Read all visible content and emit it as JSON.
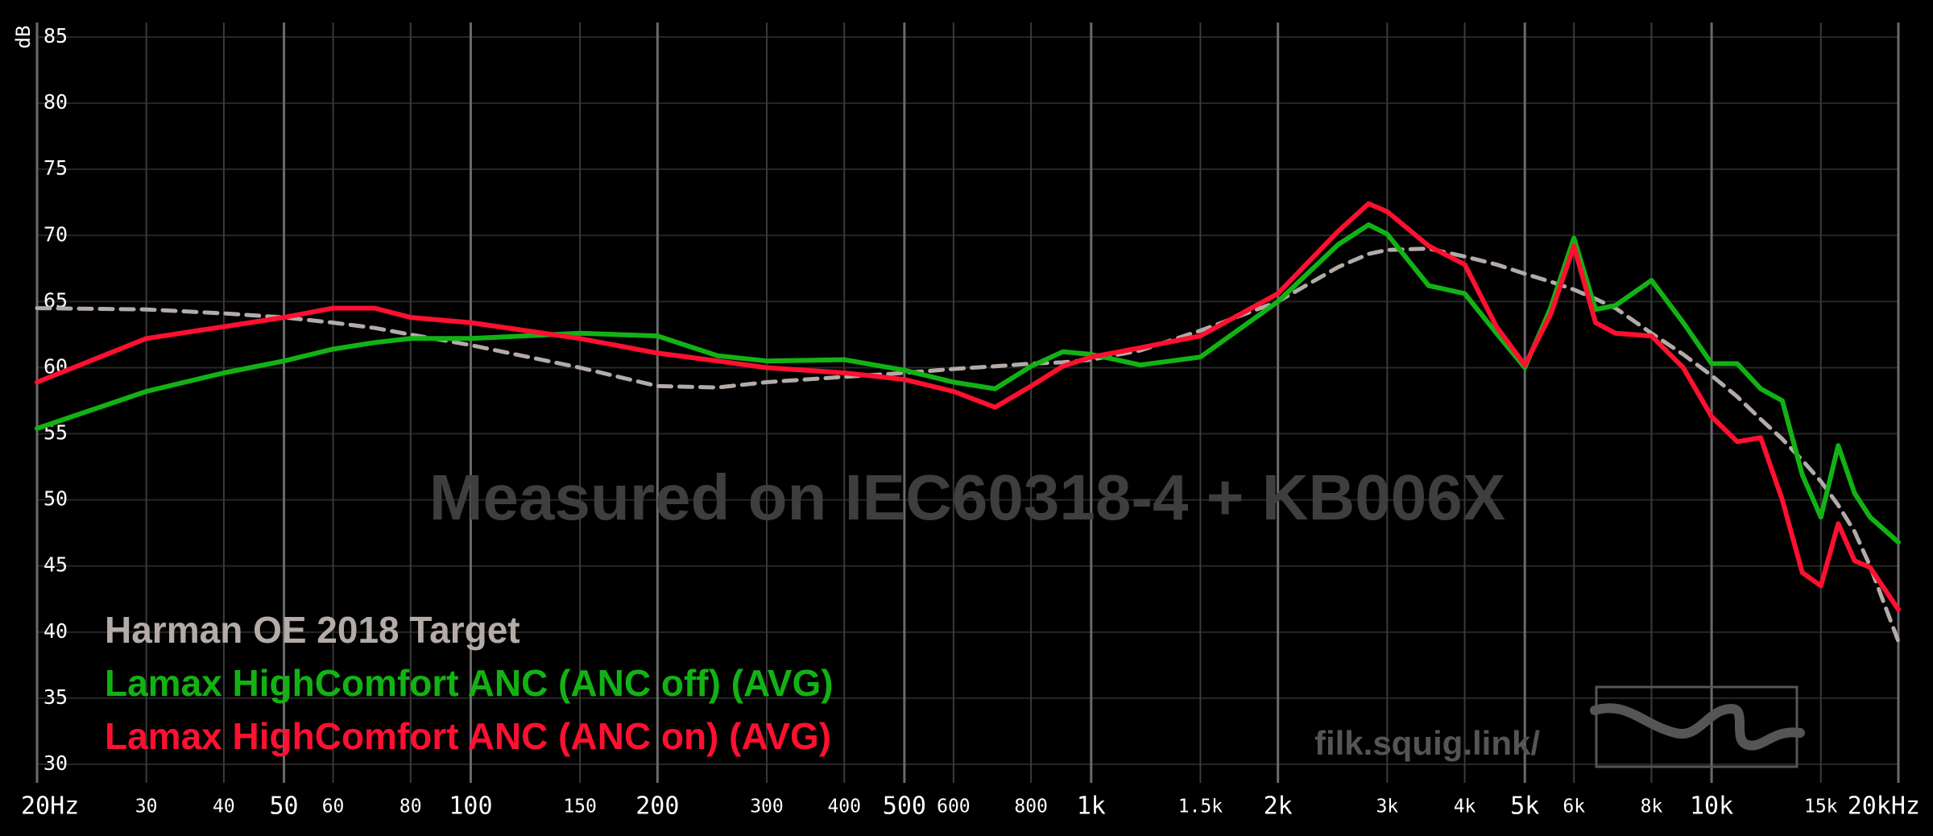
{
  "chart_data": {
    "type": "line",
    "y_label": "dB",
    "watermark": "Measured on IEC60318-4 + KB006X",
    "site": "filk.squig.link/",
    "log_x": true,
    "grid": true,
    "x": [
      20,
      30,
      40,
      50,
      60,
      70,
      80,
      100,
      150,
      200,
      250,
      300,
      400,
      500,
      600,
      700,
      800,
      900,
      1000,
      1200,
      1500,
      2000,
      2500,
      2800,
      3000,
      3500,
      4000,
      4500,
      5000,
      5500,
      6000,
      6500,
      7000,
      8000,
      9000,
      10000,
      11000,
      12000,
      13000,
      14000,
      15000,
      16000,
      17000,
      18000,
      20000
    ],
    "series": [
      {
        "name": "Harman OE 2018 Target",
        "color": "#b3aba7",
        "style": "dashed",
        "values": [
          64.5,
          64.4,
          64.1,
          63.8,
          63.4,
          63.0,
          62.5,
          61.7,
          60.0,
          58.6,
          58.5,
          58.9,
          59.3,
          59.6,
          59.9,
          60.1,
          60.3,
          60.4,
          60.6,
          61.3,
          62.8,
          65.0,
          67.6,
          68.6,
          68.9,
          69.0,
          68.4,
          67.8,
          67.1,
          66.5,
          65.9,
          65.2,
          64.5,
          62.6,
          61.0,
          59.4,
          57.8,
          56.1,
          54.6,
          53.0,
          51.4,
          49.6,
          47.6,
          45.0,
          39.3
        ]
      },
      {
        "name": "Lamax HighComfort ANC (ANC off) (AVG)",
        "color": "#13b214",
        "style": "solid",
        "values": [
          55.4,
          58.2,
          59.6,
          60.5,
          61.4,
          61.9,
          62.2,
          62.2,
          62.6,
          62.4,
          60.9,
          60.5,
          60.6,
          59.8,
          58.9,
          58.4,
          60.1,
          61.2,
          61.0,
          60.2,
          60.8,
          65.0,
          69.3,
          70.8,
          70.1,
          66.2,
          65.6,
          62.6,
          60.0,
          64.5,
          69.8,
          64.4,
          64.7,
          66.6,
          63.4,
          60.3,
          60.3,
          58.4,
          57.5,
          51.9,
          48.7,
          54.1,
          50.5,
          48.7,
          46.8
        ]
      },
      {
        "name": "Lamax HighComfort ANC (ANC on) (AVG)",
        "color": "#ff1030",
        "style": "solid",
        "values": [
          58.9,
          62.2,
          63.1,
          63.8,
          64.5,
          64.5,
          63.8,
          63.4,
          62.2,
          61.1,
          60.5,
          60.0,
          59.6,
          59.1,
          58.2,
          57.0,
          58.6,
          60.1,
          60.8,
          61.5,
          62.4,
          65.6,
          70.3,
          72.4,
          71.8,
          69.2,
          67.8,
          63.1,
          60.2,
          64.0,
          69.2,
          63.4,
          62.6,
          62.4,
          60.0,
          56.3,
          54.4,
          54.7,
          50.0,
          44.5,
          43.5,
          48.2,
          45.4,
          44.9,
          41.7
        ]
      }
    ],
    "xlim": [
      20,
      20000
    ],
    "xticks": [
      {
        "value": 20,
        "label": "20Hz"
      },
      30,
      40,
      50,
      60,
      80,
      100,
      150,
      200,
      300,
      400,
      500,
      600,
      800,
      {
        "value": 1000,
        "label": "1k"
      },
      {
        "value": 1500,
        "label": "1.5k"
      },
      {
        "value": 2000,
        "label": "2k"
      },
      {
        "value": 3000,
        "label": "3k"
      },
      {
        "value": 4000,
        "label": "4k"
      },
      {
        "value": 5000,
        "label": "5k"
      },
      {
        "value": 6000,
        "label": "6k"
      },
      {
        "value": 8000,
        "label": "8k"
      },
      {
        "value": 10000,
        "label": "10k"
      },
      {
        "value": 15000,
        "label": "15k"
      },
      {
        "value": 20000,
        "label": "20kHz"
      }
    ],
    "ylim": [
      30,
      85
    ],
    "yticks": [
      30,
      35,
      40,
      45,
      50,
      55,
      60,
      65,
      70,
      75,
      80,
      85
    ]
  }
}
